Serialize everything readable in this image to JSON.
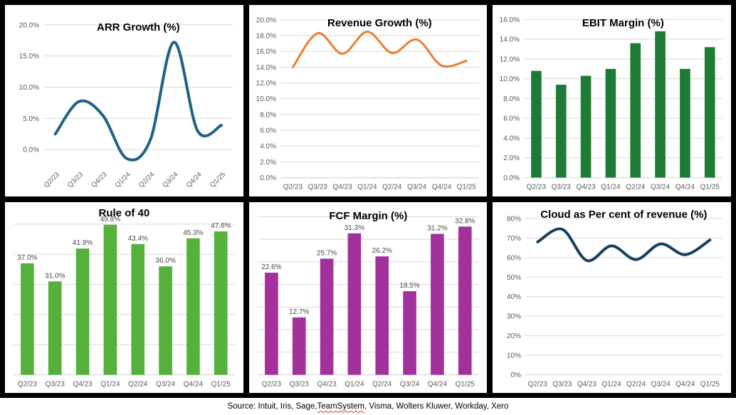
{
  "source": {
    "prefix": "Source: Intuit, Iris, Sage, ",
    "spellchecked_word": "TeamSystem",
    "suffix": ", Visma, Wolters Kluwer, Workday, Xero"
  },
  "colors": {
    "arr_line": "#1f6484",
    "revenue_line": "#ed7d31",
    "ebit_bar": "#1e7b35",
    "rule40_bar": "#56b13c",
    "fcf_bar": "#a3319c",
    "cloud_line": "#17405d",
    "gridline": "#d9d9d9",
    "tick_text": "#595959",
    "data_label_text": "#4a4a4a",
    "title_text": "#000000"
  },
  "chart_data": [
    {
      "id": "arr",
      "type": "line",
      "title": "ARR Growth (%)",
      "categories": [
        "Q2/23",
        "Q3/23",
        "Q4/23",
        "Q1/24",
        "Q2/24",
        "Q3/24",
        "Q4/24",
        "Q1/25"
      ],
      "values": [
        2.5,
        7.7,
        5.5,
        -1.4,
        1.5,
        17.2,
        3.0,
        3.9
      ],
      "color": "#1f6484",
      "line_width": 4,
      "smooth": true,
      "ylim": [
        -2.2,
        21.8
      ],
      "x_rotate": true,
      "grid": true,
      "axis_line": false,
      "yticks": [
        {
          "v": 0,
          "label": "0.0%"
        },
        {
          "v": 5,
          "label": "5.0%"
        },
        {
          "v": 10,
          "label": "10.0%"
        },
        {
          "v": 15,
          "label": "15.0%"
        },
        {
          "v": 20,
          "label": "20.0%"
        }
      ]
    },
    {
      "id": "revenue",
      "type": "line",
      "title": "Revenue Growth (%)",
      "categories": [
        "Q2/23",
        "Q3/23",
        "Q4/23",
        "Q1/24",
        "Q2/24",
        "Q3/24",
        "Q4/24",
        "Q1/25"
      ],
      "values": [
        14.0,
        18.3,
        15.7,
        18.5,
        15.8,
        17.5,
        14.2,
        14.8
      ],
      "color": "#ed7d31",
      "line_width": 3,
      "smooth": true,
      "ylim": [
        0,
        20.8
      ],
      "x_rotate": false,
      "grid": true,
      "axis_line": true,
      "yticks": [
        {
          "v": 0,
          "label": "0.0%"
        },
        {
          "v": 2,
          "label": "2.0%"
        },
        {
          "v": 4,
          "label": "4.0%"
        },
        {
          "v": 6,
          "label": "6.0%"
        },
        {
          "v": 8,
          "label": "8.0%"
        },
        {
          "v": 10,
          "label": "10.0%"
        },
        {
          "v": 12,
          "label": "12.0%"
        },
        {
          "v": 14,
          "label": "14.0%"
        },
        {
          "v": 16,
          "label": "16.0%"
        },
        {
          "v": 18,
          "label": "18.0%"
        },
        {
          "v": 20,
          "label": "20.0%"
        }
      ]
    },
    {
      "id": "ebit",
      "type": "bar",
      "title": "EBIT Margin (%)",
      "categories": [
        "Q2/23",
        "Q3/23",
        "Q4/23",
        "Q1/24",
        "Q2/24",
        "Q3/24",
        "Q4/24",
        "Q1/25"
      ],
      "values": [
        10.8,
        9.4,
        10.3,
        11.0,
        13.6,
        14.8,
        11.0,
        13.2
      ],
      "color": "#1e7b35",
      "bar_ratio": 0.42,
      "ylim": [
        0,
        16.6
      ],
      "x_rotate": false,
      "grid": true,
      "axis_line": true,
      "yticks": [
        {
          "v": 0,
          "label": "0.0%"
        },
        {
          "v": 2,
          "label": "2.0%"
        },
        {
          "v": 4,
          "label": "4.0%"
        },
        {
          "v": 6,
          "label": "6.0%"
        },
        {
          "v": 8,
          "label": "8.0%"
        },
        {
          "v": 10,
          "label": "10.0%"
        },
        {
          "v": 12,
          "label": "12.0%"
        },
        {
          "v": 14,
          "label": "14.0%"
        },
        {
          "v": 16,
          "label": "16.0%"
        }
      ]
    },
    {
      "id": "rule40",
      "type": "bar",
      "title": "Rule of 40",
      "categories": [
        "Q2/23",
        "Q3/23",
        "Q4/23",
        "Q1/24",
        "Q2/24",
        "Q3/24",
        "Q4/24",
        "Q1/25"
      ],
      "values": [
        37.0,
        31.0,
        41.9,
        49.8,
        43.4,
        36.0,
        45.3,
        47.6
      ],
      "data_labels": [
        "37.0%",
        "31.0%",
        "41.9%",
        "49.8%",
        "43.4%",
        "36.0%",
        "45.3%",
        "47.6%"
      ],
      "color": "#56b13c",
      "bar_ratio": 0.48,
      "ylim": [
        0,
        54
      ],
      "x_rotate": false,
      "grid": true,
      "axis_line": true,
      "yticks": [
        {
          "v": 10,
          "label": ""
        },
        {
          "v": 20,
          "label": ""
        },
        {
          "v": 30,
          "label": ""
        },
        {
          "v": 40,
          "label": ""
        },
        {
          "v": 50,
          "label": ""
        }
      ]
    },
    {
      "id": "fcf",
      "type": "bar",
      "title": "FCF Margin (%)",
      "categories": [
        "Q2/23",
        "Q3/23",
        "Q4/23",
        "Q1/24",
        "Q2/24",
        "Q3/24",
        "Q4/24",
        "Q1/25"
      ],
      "values": [
        22.6,
        12.7,
        25.7,
        31.3,
        26.2,
        18.5,
        31.2,
        32.8
      ],
      "data_labels": [
        "22.6%",
        "12.7%",
        "25.7%",
        "31.3%",
        "26.2%",
        "18.5%",
        "31.2%",
        "32.8%"
      ],
      "color": "#a3319c",
      "bar_ratio": 0.48,
      "ylim": [
        0,
        36
      ],
      "x_rotate": false,
      "grid": true,
      "axis_line": true,
      "yticks": [
        {
          "v": 5,
          "label": ""
        },
        {
          "v": 10,
          "label": ""
        },
        {
          "v": 15,
          "label": ""
        },
        {
          "v": 20,
          "label": ""
        },
        {
          "v": 25,
          "label": ""
        },
        {
          "v": 30,
          "label": ""
        },
        {
          "v": 35,
          "label": ""
        }
      ]
    },
    {
      "id": "cloud",
      "type": "line",
      "title": "Cloud as Per cent of revenue (%)",
      "categories": [
        "Q2/23",
        "Q3/23",
        "Q4/23",
        "Q1/24",
        "Q2/24",
        "Q3/24",
        "Q4/24",
        "Q1/25"
      ],
      "values": [
        68,
        74.5,
        58.5,
        66,
        59,
        67,
        61.5,
        69
      ],
      "color": "#17405d",
      "line_width": 4,
      "smooth": true,
      "ylim": [
        0,
        84
      ],
      "x_rotate": false,
      "grid": true,
      "axis_line": true,
      "yticks": [
        {
          "v": 0,
          "label": "0%"
        },
        {
          "v": 10,
          "label": "10%"
        },
        {
          "v": 20,
          "label": "20%"
        },
        {
          "v": 30,
          "label": "30%"
        },
        {
          "v": 40,
          "label": "40%"
        },
        {
          "v": 50,
          "label": "50%"
        },
        {
          "v": 60,
          "label": "60%"
        },
        {
          "v": 70,
          "label": "70%"
        },
        {
          "v": 80,
          "label": "80%"
        }
      ]
    }
  ]
}
